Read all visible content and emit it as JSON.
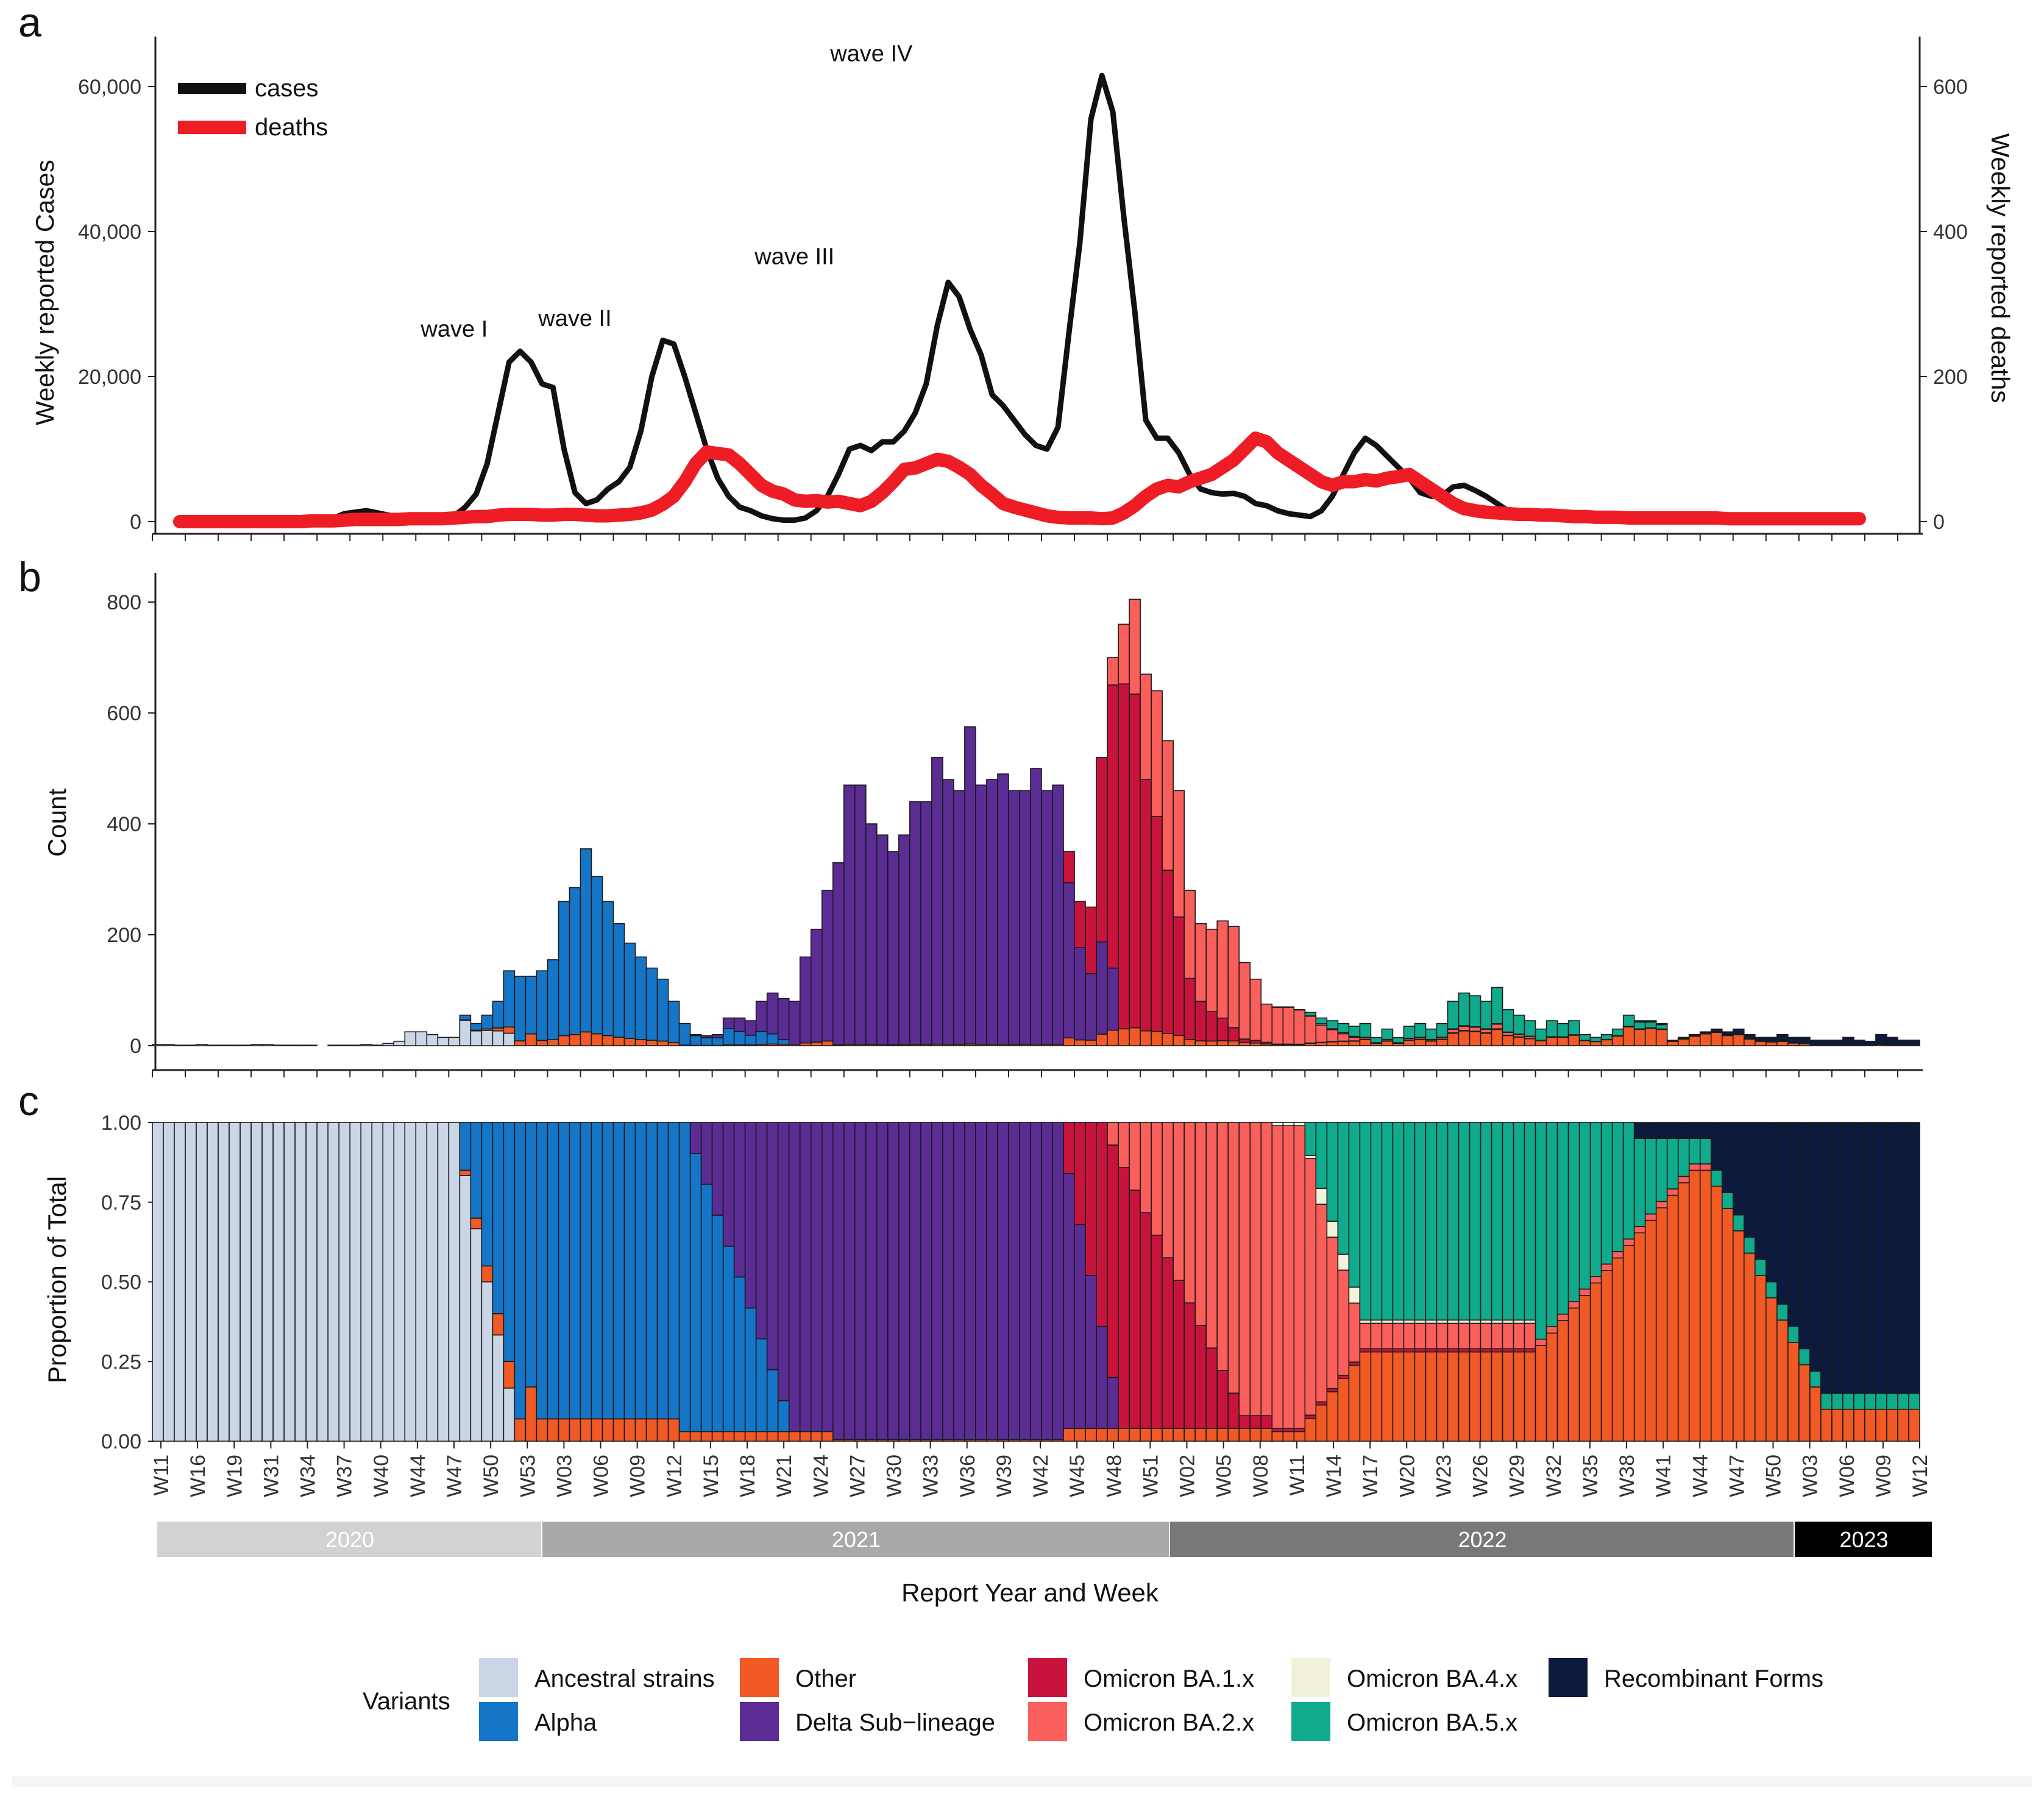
{
  "colors": {
    "ancestral": "#cad5e6",
    "alpha": "#1576c8",
    "other": "#f15a24",
    "delta": "#5b2c94",
    "ba1": "#c8143c",
    "ba2": "#fa5f5c",
    "ba4": "#f2f2dc",
    "ba5": "#0fab8c",
    "recomb": "#0b1a3d",
    "cases_line": "#111111",
    "deaths_line": "#ee1c25"
  },
  "chart_data": [
    {
      "id": "a",
      "type": "line",
      "panel_label": "a",
      "ylabel": "Weekly reported Cases",
      "ylabel_right": "Weekly reported deaths",
      "ylim": [
        0,
        65000
      ],
      "ylim_right": [
        0,
        650
      ],
      "yticks": [
        "0",
        "20,000",
        "40,000",
        "60,000"
      ],
      "yticks_right": [
        "0",
        "200",
        "400",
        "600"
      ],
      "legend": [
        "cases",
        "deaths"
      ],
      "annotations": [
        {
          "text": "wave I",
          "x": 25,
          "y": 26000
        },
        {
          "text": "wave II",
          "x": 36,
          "y": 27500
        },
        {
          "text": "wave III",
          "x": 56,
          "y": 36000
        },
        {
          "text": "wave IV",
          "x": 63,
          "y": 64000
        }
      ],
      "x_start": 2,
      "series": [
        {
          "name": "cases",
          "values": [
            0,
            0,
            0,
            0,
            0,
            0,
            0,
            0,
            0,
            0,
            0,
            0,
            0,
            200,
            500,
            1100,
            1300,
            1500,
            1200,
            900,
            600,
            400,
            300,
            300,
            400,
            800,
            2000,
            3800,
            8000,
            15000,
            22000,
            23500,
            22000,
            19000,
            18500,
            10000,
            4000,
            2500,
            3000,
            4500,
            5500,
            7500,
            12500,
            20000,
            25000,
            24500,
            20000,
            15000,
            10000,
            6000,
            3500,
            2000,
            1500,
            800,
            400,
            200,
            200,
            500,
            1500,
            3500,
            6500,
            10000,
            10500,
            9800,
            11000,
            11000,
            12500,
            15000,
            19000,
            27000,
            33000,
            31000,
            26500,
            23000,
            17500,
            16000,
            14000,
            12000,
            10500,
            10000,
            13000,
            26000,
            38500,
            55500,
            61500,
            56500,
            42000,
            29000,
            14000,
            11500,
            11500,
            9500,
            6500,
            4500,
            4000,
            3800,
            3900,
            3500,
            2500,
            2200,
            1500,
            1100,
            900,
            700,
            1500,
            3500,
            6500,
            9500,
            11500,
            10500,
            9000,
            7500,
            6000,
            4000,
            3500,
            3600,
            4800,
            5000,
            4300,
            3500,
            2500,
            1500,
            1200,
            1100,
            1000,
            900,
            700,
            600,
            500,
            600,
            800,
            700,
            500,
            400,
            300,
            250,
            200,
            200,
            200,
            200,
            200,
            200,
            200,
            200,
            200,
            200,
            200,
            200,
            200,
            200,
            200
          ]
        },
        {
          "name": "deaths",
          "values": [
            0,
            0,
            0,
            0,
            0,
            0,
            0,
            0,
            0,
            0,
            0,
            0,
            1,
            1,
            1,
            2,
            3,
            3,
            3,
            3,
            3,
            4,
            4,
            4,
            4,
            5,
            6,
            7,
            7,
            9,
            10,
            10,
            10,
            9,
            9,
            10,
            10,
            9,
            8,
            8,
            9,
            10,
            12,
            16,
            24,
            35,
            55,
            80,
            96,
            94,
            92,
            80,
            65,
            50,
            42,
            38,
            30,
            28,
            29,
            27,
            28,
            25,
            22,
            28,
            40,
            55,
            72,
            74,
            80,
            86,
            83,
            75,
            65,
            50,
            38,
            25,
            20,
            16,
            12,
            8,
            6,
            5,
            5,
            5,
            4,
            5,
            12,
            22,
            35,
            45,
            50,
            48,
            55,
            60,
            65,
            75,
            85,
            100,
            115,
            110,
            95,
            85,
            75,
            65,
            55,
            50,
            55,
            55,
            58,
            56,
            60,
            62,
            65,
            55,
            45,
            35,
            25,
            18,
            15,
            13,
            12,
            11,
            10,
            10,
            9,
            9,
            8,
            7,
            7,
            6,
            6,
            6,
            5,
            5,
            5,
            5,
            5,
            5,
            5,
            5,
            5,
            4,
            4,
            4,
            4,
            4,
            4,
            4,
            4,
            4,
            4,
            4,
            4,
            4
          ]
        }
      ]
    },
    {
      "id": "b",
      "type": "bar",
      "stacked": true,
      "panel_label": "b",
      "ylabel": "Count",
      "ylim": [
        0,
        800
      ],
      "yticks": [
        "0",
        "200",
        "400",
        "600",
        "800"
      ],
      "series_names": [
        "Ancestral strains",
        "Other",
        "Alpha",
        "Delta Sub−lineage",
        "Omicron BA.1.x",
        "Omicron BA.2.x",
        "Omicron BA.4.x",
        "Omicron BA.5.x",
        "Recombinant Forms"
      ],
      "counts": [
        2,
        2,
        1,
        1,
        2,
        1,
        1,
        1,
        1,
        2,
        2,
        1,
        1,
        1,
        1,
        0,
        1,
        1,
        1,
        2,
        1,
        4,
        8,
        25,
        25,
        20,
        15,
        15,
        55,
        40,
        55,
        80,
        135,
        125,
        125,
        135,
        155,
        260,
        285,
        355,
        305,
        260,
        220,
        185,
        160,
        140,
        120,
        80,
        40,
        20,
        18,
        20,
        50,
        50,
        45,
        80,
        95,
        85,
        80,
        160,
        210,
        280,
        330,
        470,
        470,
        400,
        380,
        350,
        380,
        440,
        440,
        520,
        480,
        460,
        575,
        470,
        480,
        490,
        460,
        460,
        500,
        460,
        470,
        350,
        260,
        250,
        520,
        700,
        760,
        805,
        670,
        640,
        550,
        460,
        280,
        220,
        210,
        225,
        215,
        150,
        120,
        75,
        70,
        70,
        65,
        60,
        50,
        45,
        40,
        35,
        40,
        15,
        30,
        15,
        35,
        40,
        30,
        40,
        80,
        95,
        90,
        80,
        105,
        65,
        55,
        45,
        30,
        45,
        40,
        45,
        20,
        15,
        20,
        30,
        55,
        45,
        45,
        40,
        10,
        15,
        20,
        25,
        30,
        25,
        30,
        20,
        15,
        15,
        20,
        15,
        15,
        10,
        10,
        10,
        15,
        10,
        8,
        20,
        15,
        10,
        10
      ]
    },
    {
      "id": "c",
      "type": "bar",
      "stacked": true,
      "panel_label": "c",
      "ylabel": "Proportion of Total",
      "ylim": [
        0,
        1
      ],
      "yticks": [
        "0.00",
        "0.25",
        "0.50",
        "0.75",
        "1.00"
      ],
      "series_names": [
        "Ancestral strains",
        "Other",
        "Alpha",
        "Delta Sub−lineage",
        "Omicron BA.1.x",
        "Omicron BA.2.x",
        "Omicron BA.4.x",
        "Omicron BA.5.x",
        "Recombinant Forms"
      ],
      "xticks": [
        "W11",
        "W16",
        "W19",
        "W31",
        "W34",
        "W37",
        "W40",
        "W44",
        "W47",
        "W50",
        "W53",
        "W03",
        "W06",
        "W09",
        "W12",
        "W15",
        "W18",
        "W21",
        "W24",
        "W27",
        "W30",
        "W33",
        "W36",
        "W39",
        "W42",
        "W45",
        "W48",
        "W51",
        "W02",
        "W05",
        "W08",
        "W11",
        "W14",
        "W17",
        "W20",
        "W23",
        "W26",
        "W29",
        "W32",
        "W35",
        "W38",
        "W41",
        "W44",
        "W47",
        "W50",
        "W03",
        "W06",
        "W09",
        "W12"
      ],
      "xlabel": "Report Year and Week",
      "years": [
        {
          "label": "2020",
          "color": "#d2d2d2",
          "text": "#ffffff"
        },
        {
          "label": "2021",
          "color": "#a9a9a9",
          "text": "#ffffff"
        },
        {
          "label": "2022",
          "color": "#787878",
          "text": "#ffffff"
        },
        {
          "label": "2023",
          "color": "#000000",
          "text": "#ffffff"
        }
      ]
    }
  ],
  "legend": {
    "title": "Variants",
    "items": [
      {
        "label": "Ancestral strains",
        "key": "ancestral"
      },
      {
        "label": "Alpha",
        "key": "alpha"
      },
      {
        "label": "Other",
        "key": "other"
      },
      {
        "label": "Delta Sub−lineage",
        "key": "delta"
      },
      {
        "label": "Omicron BA.1.x",
        "key": "ba1"
      },
      {
        "label": "Omicron BA.2.x",
        "key": "ba2"
      },
      {
        "label": "Omicron BA.4.x",
        "key": "ba4"
      },
      {
        "label": "Omicron BA.5.x",
        "key": "ba5"
      },
      {
        "label": "Recombinant Forms",
        "key": "recomb"
      }
    ]
  }
}
